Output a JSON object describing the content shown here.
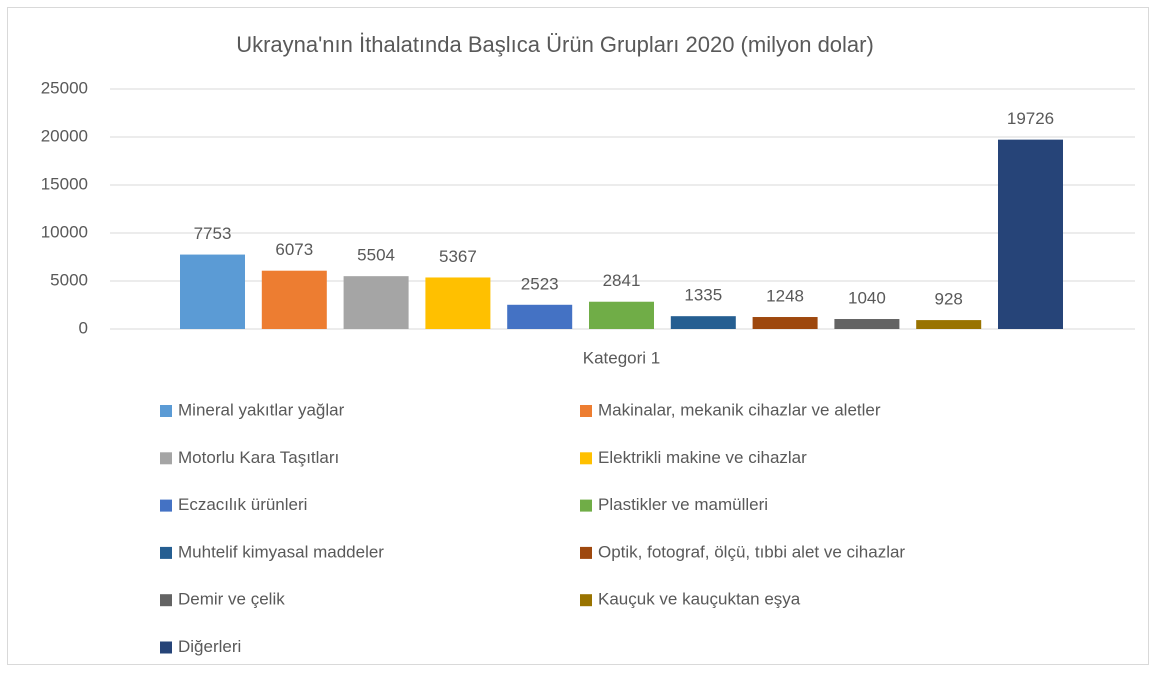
{
  "chart_data": {
    "type": "bar",
    "title": "Ukrayna'nın İthalatında Başlıca Ürün Grupları 2020 (milyon dolar)",
    "categories": [
      "Kategori 1"
    ],
    "series": [
      {
        "name": "Mineral yakıtlar yağlar",
        "color": "#5B9BD5",
        "values": [
          7753
        ]
      },
      {
        "name": "Makinalar, mekanik cihazlar ve aletler",
        "color": "#ED7D31",
        "values": [
          6073
        ]
      },
      {
        "name": "Motorlu Kara Taşıtları",
        "color": "#A5A5A5",
        "values": [
          5504
        ]
      },
      {
        "name": "Elektrikli makine ve cihazlar",
        "color": "#FFC000",
        "values": [
          5367
        ]
      },
      {
        "name": "Eczacılık ürünleri",
        "color": "#4472C4",
        "values": [
          2523
        ]
      },
      {
        "name": "Plastikler ve mamülleri",
        "color": "#70AD47",
        "values": [
          2841
        ]
      },
      {
        "name": "Muhtelif kimyasal maddeler",
        "color": "#255E91",
        "values": [
          1335
        ]
      },
      {
        "name": "Optik, fotograf, ölçü, tıbbi alet ve cihazlar",
        "color": "#9E480E",
        "values": [
          1248
        ]
      },
      {
        "name": "Demir ve çelik",
        "color": "#636363",
        "values": [
          1040
        ]
      },
      {
        "name": "Kauçuk ve kauçuktan eşya",
        "color": "#997300",
        "values": [
          928
        ]
      },
      {
        "name": "Diğerleri",
        "color": "#264478",
        "values": [
          19726
        ]
      }
    ],
    "ylim": [
      0,
      25000
    ],
    "yticks": [
      0,
      5000,
      10000,
      15000,
      20000,
      25000
    ],
    "grid": true,
    "legend": "bottom"
  }
}
